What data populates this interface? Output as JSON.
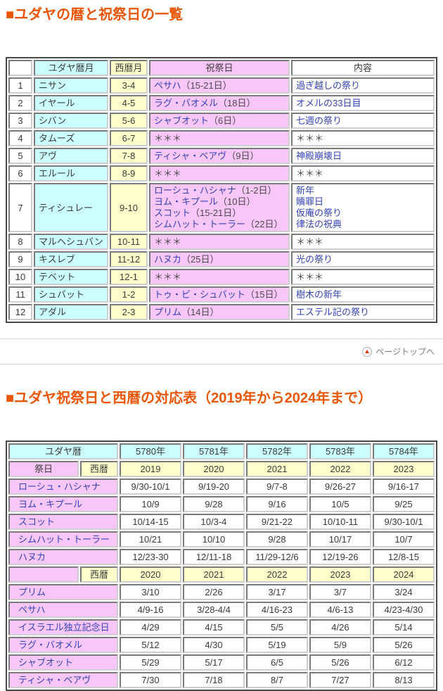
{
  "colors": {
    "accent_orange": "#EA5506",
    "header_cyan": "#CCFFFF",
    "header_yellow": "#FFFFCC",
    "header_pink": "#F9C6F8",
    "link_blue": "#3343BB",
    "pagetop_triangle_red": "#E8380D"
  },
  "section1": {
    "title": "■ユダヤの暦と祝祭日の一覧",
    "table": {
      "headers": [
        "",
        "ユダヤ暦月",
        "西暦月",
        "祝祭日",
        "内容"
      ],
      "empty_marker": "＊＊＊",
      "rows": [
        {
          "num": "1",
          "month": "ニサン",
          "greg": "3-4",
          "festivals": [
            {
              "name": "ペサハ",
              "note": "（15-21日）"
            }
          ],
          "contents": [
            "過ぎ越しの祭り"
          ]
        },
        {
          "num": "2",
          "month": "イヤール",
          "greg": "4-5",
          "festivals": [
            {
              "name": "ラグ・バオメル",
              "note": "（18日）"
            }
          ],
          "contents": [
            "オメルの33日目"
          ]
        },
        {
          "num": "3",
          "month": "シバン",
          "greg": "5-6",
          "festivals": [
            {
              "name": "シャブオット",
              "note": "（6日）"
            }
          ],
          "contents": [
            "七週の祭り"
          ]
        },
        {
          "num": "4",
          "month": "タムーズ",
          "greg": "6-7",
          "festivals": [],
          "contents": []
        },
        {
          "num": "5",
          "month": "アヴ",
          "greg": "7-8",
          "festivals": [
            {
              "name": "ティシャ・ベアヴ",
              "note": "（9日）"
            }
          ],
          "contents": [
            "神殿崩壊日"
          ]
        },
        {
          "num": "6",
          "month": "エルール",
          "greg": "8-9",
          "festivals": [],
          "contents": []
        },
        {
          "num": "7",
          "month": "ティシュレー",
          "greg": "9-10",
          "festivals": [
            {
              "name": "ローシュ・ハシャナ",
              "note": "（1-2日）"
            },
            {
              "name": "ヨム・キプール",
              "note": "（10日）"
            },
            {
              "name": "スコット",
              "note": "（15-21日）"
            },
            {
              "name": "シムハット・トーラー",
              "note": "（22日）"
            }
          ],
          "contents": [
            "新年",
            "贖罪日",
            "仮庵の祭り",
            "律法の祝典"
          ]
        },
        {
          "num": "8",
          "month": "マルヘシュバン",
          "greg": "10-11",
          "festivals": [],
          "contents": []
        },
        {
          "num": "9",
          "month": "キスレブ",
          "greg": "11-12",
          "festivals": [
            {
              "name": "ハヌカ",
              "note": "（25日）"
            }
          ],
          "contents": [
            "光の祭り"
          ]
        },
        {
          "num": "10",
          "month": "テベット",
          "greg": "12-1",
          "festivals": [],
          "contents": []
        },
        {
          "num": "11",
          "month": "シュバット",
          "greg": "1-2",
          "festivals": [
            {
              "name": "トゥ・ビ・シュバット",
              "note": "（15日）"
            }
          ],
          "contents": [
            "樹木の新年"
          ]
        },
        {
          "num": "12",
          "month": "アダル",
          "greg": "2-3",
          "festivals": [
            {
              "name": "プリム",
              "note": "（14日）"
            }
          ],
          "contents": [
            "エステル記の祭り"
          ]
        }
      ]
    }
  },
  "pagetop": {
    "label": "ページトップへ",
    "icon": "up-triangle-in-circle"
  },
  "section2": {
    "title": "■ユダヤ祝祭日と西暦の対応表（2019年から2024年まで）",
    "table": {
      "jewish_era_label": "ユダヤ暦",
      "jewish_years": [
        "5780年",
        "5781年",
        "5782年",
        "5783年",
        "5784年"
      ],
      "festival_header": "祭日",
      "western_header": "西暦",
      "block1": {
        "years": [
          "2019",
          "2020",
          "2021",
          "2022",
          "2023"
        ],
        "rows": [
          {
            "name": "ローシュ・ハシャナ",
            "dates": [
              "9/30-10/1",
              "9/19-20",
              "9/7-8",
              "9/26-27",
              "9/16-17"
            ]
          },
          {
            "name": "ヨム・キプール",
            "dates": [
              "10/9",
              "9/28",
              "9/16",
              "10/5",
              "9/25"
            ]
          },
          {
            "name": "スコット",
            "dates": [
              "10/14-15",
              "10/3-4",
              "9/21-22",
              "10/10-11",
              "9/30-10/1"
            ]
          },
          {
            "name": "シムハット・トーラー",
            "dates": [
              "10/21",
              "10/10",
              "9/28",
              "10/17",
              "10/7"
            ]
          },
          {
            "name": "ハヌカ",
            "dates": [
              "12/23-30",
              "12/11-18",
              "11/29-12/6",
              "12/19-26",
              "12/8-15"
            ]
          }
        ]
      },
      "block2": {
        "years": [
          "2020",
          "2021",
          "2022",
          "2023",
          "2024"
        ],
        "rows": [
          {
            "name": "プリム",
            "dates": [
              "3/10",
              "2/26",
              "3/17",
              "3/7",
              "3/24"
            ]
          },
          {
            "name": "ペサハ",
            "dates": [
              "4/9-16",
              "3/28-4/4",
              "4/16-23",
              "4/6-13",
              "4/23-4/30"
            ]
          },
          {
            "name": "イスラエル独立記念日",
            "dates": [
              "4/29",
              "4/15",
              "5/5",
              "4/26",
              "5/14"
            ]
          },
          {
            "name": "ラグ・バオメル",
            "dates": [
              "5/12",
              "4/30",
              "5/19",
              "5/9",
              "5/26"
            ]
          },
          {
            "name": "シャブオット",
            "dates": [
              "5/29",
              "5/17",
              "6/5",
              "5/26",
              "6/12"
            ]
          },
          {
            "name": "ティシャ・ベアヴ",
            "dates": [
              "7/30",
              "7/18",
              "8/7",
              "7/27",
              "8/13"
            ]
          }
        ]
      }
    }
  }
}
